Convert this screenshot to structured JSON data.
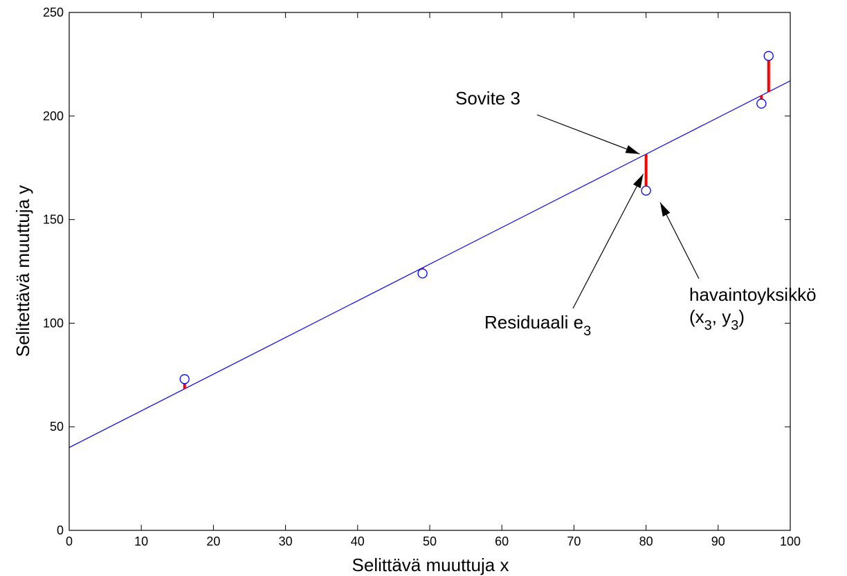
{
  "chart_data": {
    "type": "scatter",
    "xlabel": "Selittävä muuttuja x",
    "ylabel": "Selitettävä muuttuja y",
    "xlim": [
      0,
      100
    ],
    "ylim": [
      0,
      250
    ],
    "xticks": [
      0,
      10,
      20,
      30,
      40,
      50,
      60,
      70,
      80,
      90,
      100
    ],
    "yticks": [
      0,
      50,
      100,
      150,
      200,
      250
    ],
    "grid": false,
    "points": {
      "x": [
        16,
        49,
        80,
        96,
        97
      ],
      "y": [
        73,
        124,
        164,
        206,
        229
      ],
      "marker": "open-circle",
      "color": "#0000ff"
    },
    "fit_line": {
      "intercept": 40,
      "slope": 1.77,
      "color": "#0000ff"
    },
    "residual_color": "#ff0000",
    "annotations": [
      {
        "text": "Sovite 3",
        "subscript": "",
        "suffix": "",
        "target": [
          79.5,
          181
        ]
      },
      {
        "text": "Residuaali e",
        "subscript": "3",
        "suffix": "",
        "target": [
          79.8,
          176
        ]
      },
      {
        "text": "havaintoyksikkö",
        "subscript": "",
        "suffix": "",
        "target": [
          81,
          163
        ]
      },
      {
        "text": "(x",
        "subscript": "3",
        "suffix": ", y",
        "subscript2": "3",
        "suffix2": ")"
      }
    ]
  }
}
